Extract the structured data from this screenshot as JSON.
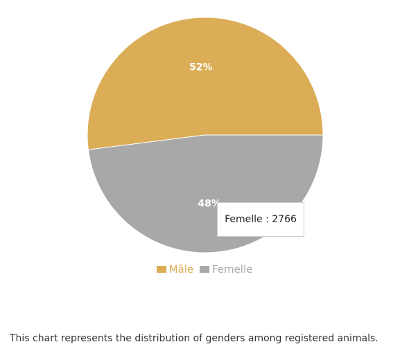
{
  "chart_data": {
    "type": "pie",
    "slices": [
      {
        "name": "Mâle",
        "percent": 52,
        "label": "52%",
        "color": "#dbad56"
      },
      {
        "name": "Femelle",
        "percent": 48,
        "label": "48%",
        "value": 2766,
        "color": "#a8a8a8"
      }
    ],
    "legend_placement": "bottom"
  },
  "tooltip": {
    "text": "Femelle : 2766"
  },
  "legend": [
    {
      "label": "Mâle",
      "color": "#dbad56"
    },
    {
      "label": "Femelle",
      "color": "#a8a8a8"
    }
  ],
  "caption": "This chart represents the distribution of genders among registered animals."
}
